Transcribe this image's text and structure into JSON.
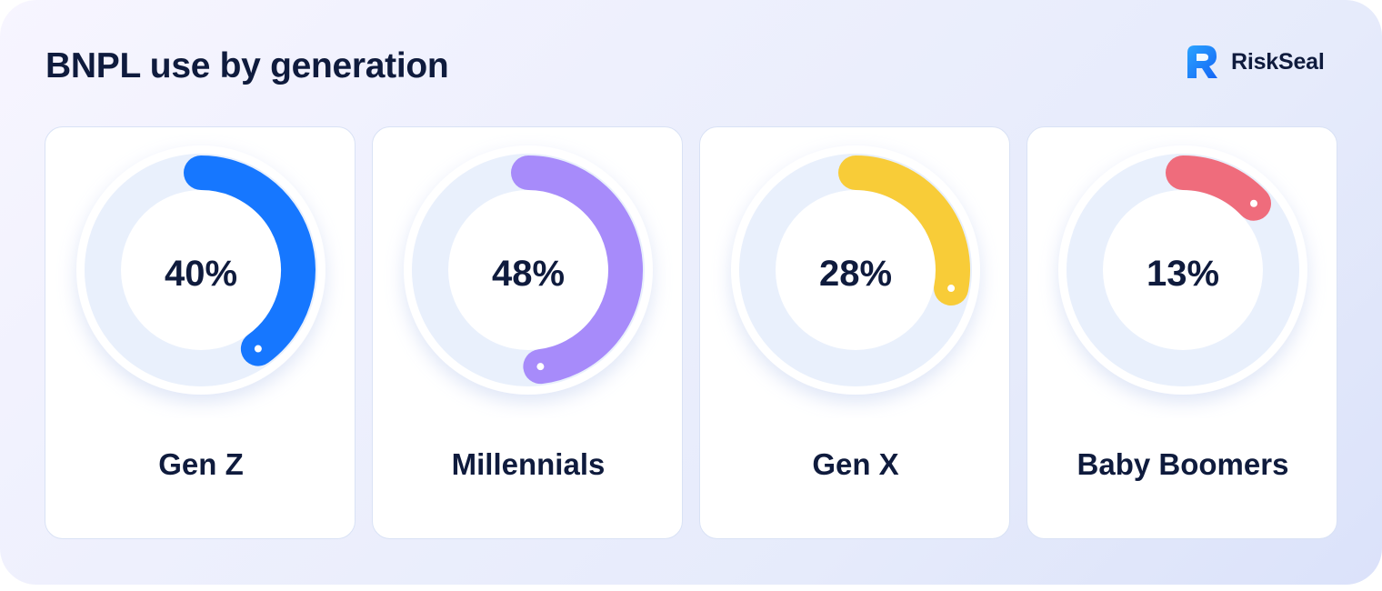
{
  "header": {
    "title": "BNPL use by generation",
    "logo_text": "RiskSeal",
    "logo_icon": "riskseal-logo-icon"
  },
  "colors": {
    "track": "#e9f0fc",
    "ring_outer": "#ffffff",
    "text": "#0f1b3d"
  },
  "chart_data": {
    "type": "donut",
    "title": "BNPL use by generation",
    "unit": "%",
    "categories": [
      "Gen Z",
      "Millennials",
      "Gen X",
      "Baby Boomers"
    ],
    "values": [
      40,
      48,
      28,
      13
    ],
    "labels": [
      "40%",
      "48%",
      "28%",
      "13%"
    ],
    "colors": [
      "#1677ff",
      "#a78bfa",
      "#f8cc38",
      "#ef6c7c"
    ]
  }
}
